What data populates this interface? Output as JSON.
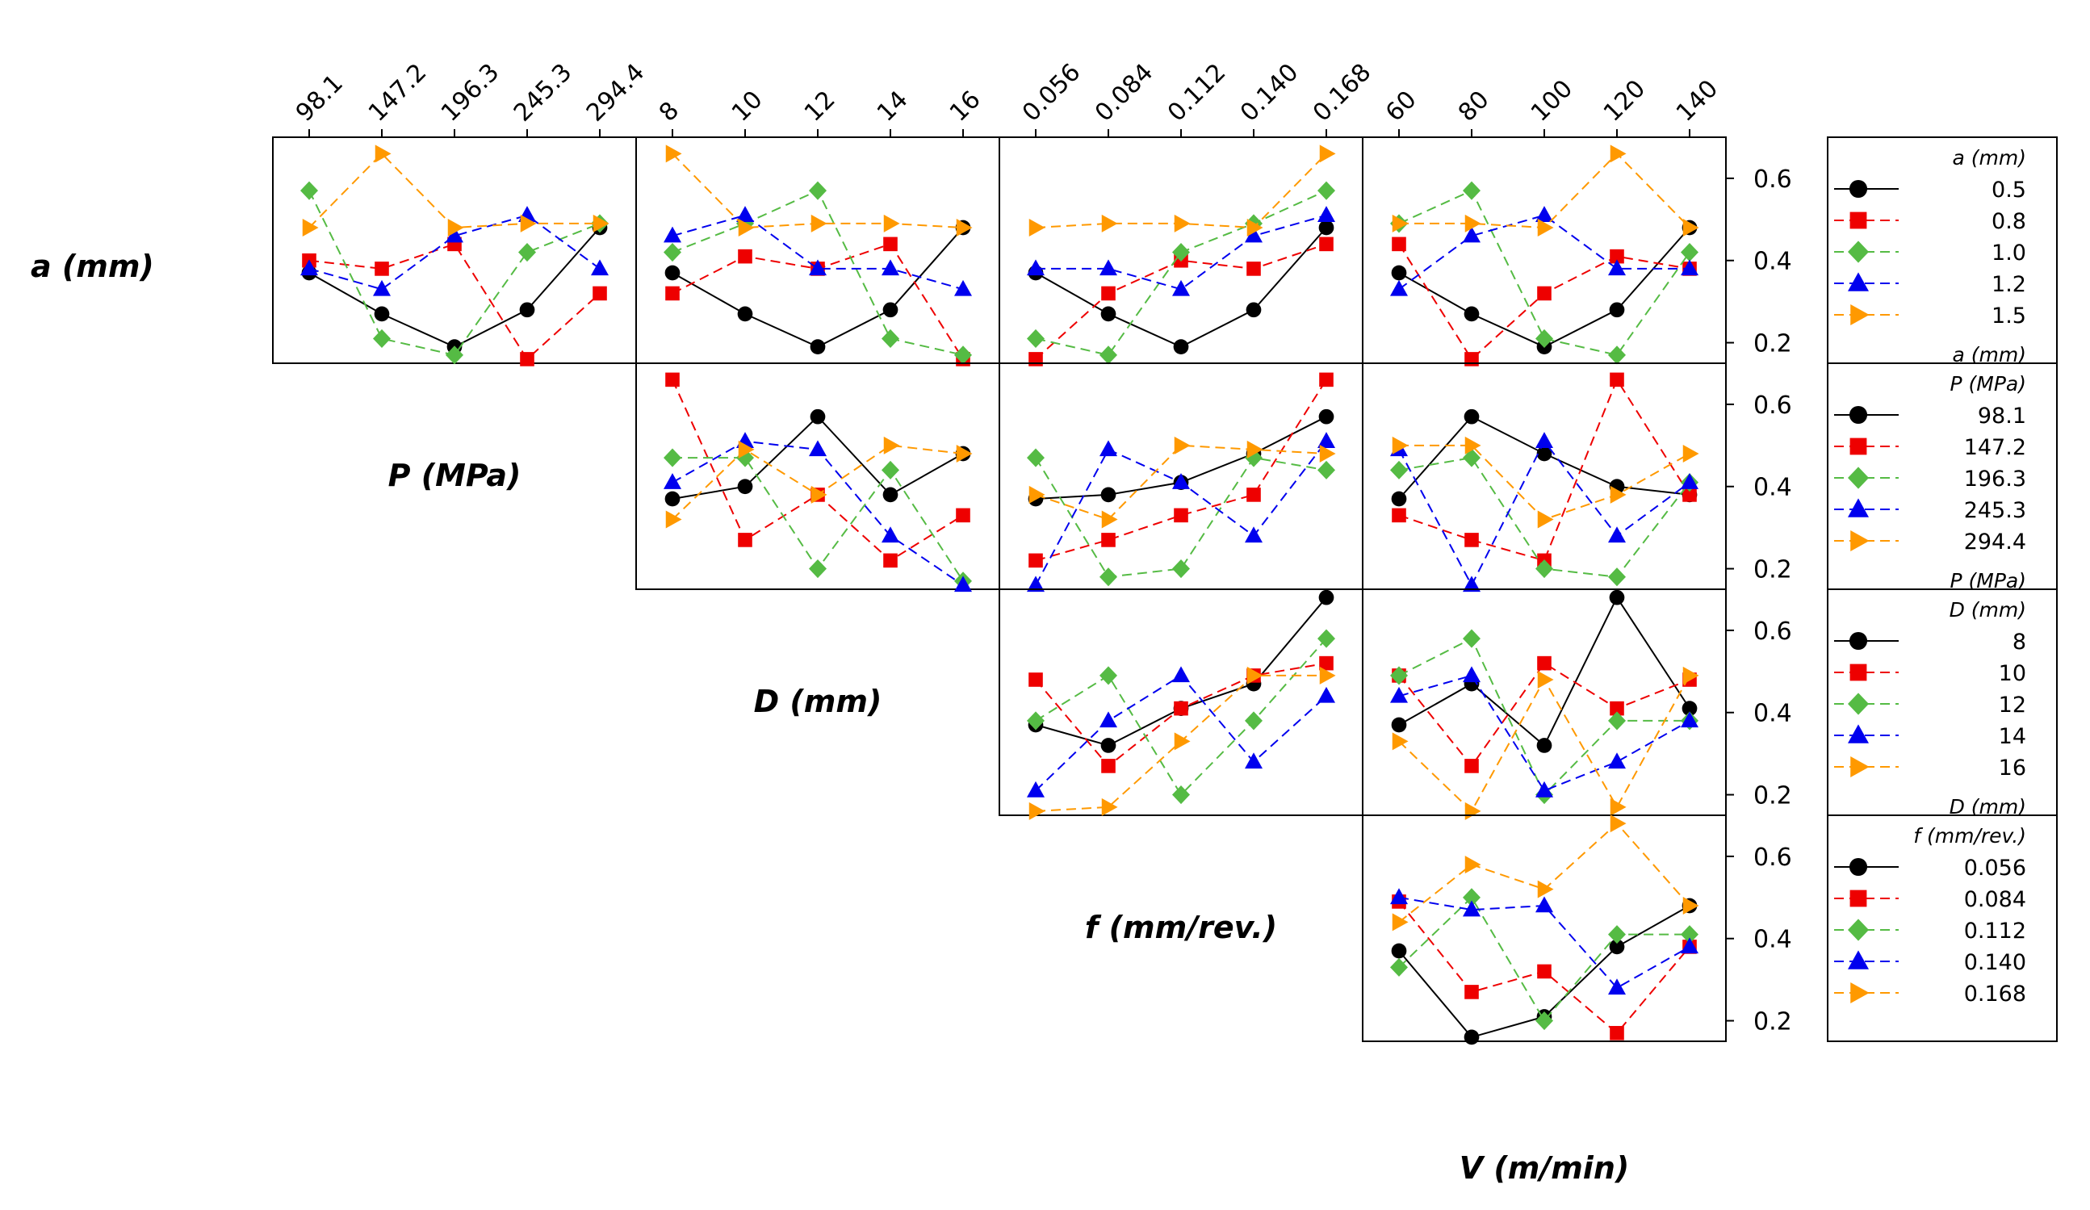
{
  "chart_data": {
    "type": "line",
    "title": "",
    "y_ticks": [
      "0.2",
      "0.4",
      "0.6"
    ],
    "ylim": [
      0.15,
      0.7
    ],
    "grid": false,
    "legend_placement": "right",
    "factors": [
      {
        "key": "a",
        "label": "a (mm)",
        "levels": [
          "0.5",
          "0.8",
          "1.0",
          "1.2",
          "1.5"
        ]
      },
      {
        "key": "P",
        "label": "P (MPa)",
        "levels": [
          "98.1",
          "147.2",
          "196.3",
          "245.3",
          "294.4"
        ]
      },
      {
        "key": "D",
        "label": "D (mm)",
        "levels": [
          "8",
          "10",
          "12",
          "14",
          "16"
        ]
      },
      {
        "key": "f",
        "label": "f (mm/rev.)",
        "levels": [
          "0.056",
          "0.084",
          "0.112",
          "0.140",
          "0.168"
        ]
      },
      {
        "key": "V",
        "label": "V (m/min)",
        "levels": [
          "60",
          "80",
          "100",
          "120",
          "140"
        ]
      }
    ],
    "series_styles": [
      {
        "color": "#000000",
        "marker": "circle",
        "dash": "solid"
      },
      {
        "color": "#ee0000",
        "marker": "square",
        "dash": "dashed"
      },
      {
        "color": "#55bb44",
        "marker": "diamond",
        "dash": "dashed"
      },
      {
        "color": "#0000ee",
        "marker": "triangle-up",
        "dash": "dashed"
      },
      {
        "color": "#ff9900",
        "marker": "triangle-right",
        "dash": "dashed"
      }
    ],
    "rows": [
      {
        "legend_title": "a (mm)",
        "legend_footer": "a (mm)",
        "legend_entries": [
          "0.5",
          "0.8",
          "1.0",
          "1.2",
          "1.5"
        ],
        "panels": [
          {
            "x_factor": "P",
            "series": [
              [
                0.37,
                0.27,
                0.19,
                0.28,
                0.48
              ],
              [
                0.4,
                0.38,
                0.44,
                0.16,
                0.32
              ],
              [
                0.57,
                0.21,
                0.17,
                0.42,
                0.49
              ],
              [
                0.38,
                0.33,
                0.46,
                0.51,
                0.38
              ],
              [
                0.48,
                0.66,
                0.48,
                0.49,
                0.49
              ]
            ]
          },
          {
            "x_factor": "D",
            "series": [
              [
                0.37,
                0.27,
                0.19,
                0.28,
                0.48
              ],
              [
                0.32,
                0.41,
                0.38,
                0.44,
                0.16
              ],
              [
                0.42,
                0.49,
                0.57,
                0.21,
                0.17
              ],
              [
                0.46,
                0.51,
                0.38,
                0.38,
                0.33
              ],
              [
                0.66,
                0.48,
                0.49,
                0.49,
                0.48
              ]
            ]
          },
          {
            "x_factor": "f",
            "series": [
              [
                0.37,
                0.27,
                0.19,
                0.28,
                0.48
              ],
              [
                0.16,
                0.32,
                0.4,
                0.38,
                0.44
              ],
              [
                0.21,
                0.17,
                0.42,
                0.49,
                0.57
              ],
              [
                0.38,
                0.38,
                0.33,
                0.46,
                0.51
              ],
              [
                0.48,
                0.49,
                0.49,
                0.48,
                0.66
              ]
            ]
          },
          {
            "x_factor": "V",
            "series": [
              [
                0.37,
                0.27,
                0.19,
                0.28,
                0.48
              ],
              [
                0.44,
                0.16,
                0.32,
                0.41,
                0.38
              ],
              [
                0.49,
                0.57,
                0.21,
                0.17,
                0.42
              ],
              [
                0.33,
                0.46,
                0.51,
                0.38,
                0.38
              ],
              [
                0.49,
                0.49,
                0.48,
                0.66,
                0.48
              ]
            ]
          }
        ]
      },
      {
        "legend_title": "P (MPa)",
        "legend_footer": "P (MPa)",
        "legend_entries": [
          "98.1",
          "147.2",
          "196.3",
          "245.3",
          "294.4"
        ],
        "panels": [
          {
            "x_factor": "D",
            "series": [
              [
                0.37,
                0.4,
                0.57,
                0.38,
                0.48
              ],
              [
                0.66,
                0.27,
                0.38,
                0.22,
                0.33
              ],
              [
                0.47,
                0.47,
                0.2,
                0.44,
                0.17
              ],
              [
                0.41,
                0.51,
                0.49,
                0.28,
                0.16
              ],
              [
                0.32,
                0.49,
                0.38,
                0.5,
                0.48
              ]
            ]
          },
          {
            "x_factor": "f",
            "series": [
              [
                0.37,
                0.38,
                0.41,
                0.48,
                0.57
              ],
              [
                0.22,
                0.27,
                0.33,
                0.38,
                0.66
              ],
              [
                0.47,
                0.18,
                0.2,
                0.47,
                0.44
              ],
              [
                0.16,
                0.49,
                0.41,
                0.28,
                0.51
              ],
              [
                0.38,
                0.32,
                0.5,
                0.49,
                0.48
              ]
            ]
          },
          {
            "x_factor": "V",
            "series": [
              [
                0.37,
                0.57,
                0.48,
                0.4,
                0.38
              ],
              [
                0.33,
                0.27,
                0.22,
                0.66,
                0.38
              ],
              [
                0.44,
                0.47,
                0.2,
                0.18,
                0.41
              ],
              [
                0.49,
                0.16,
                0.51,
                0.28,
                0.41
              ],
              [
                0.5,
                0.5,
                0.32,
                0.38,
                0.48
              ]
            ]
          }
        ]
      },
      {
        "legend_title": "D (mm)",
        "legend_footer": "D (mm)",
        "legend_entries": [
          "8",
          "10",
          "12",
          "14",
          "16"
        ],
        "panels": [
          {
            "x_factor": "f",
            "series": [
              [
                0.37,
                0.32,
                0.41,
                0.47,
                0.68
              ],
              [
                0.48,
                0.27,
                0.41,
                0.49,
                0.52
              ],
              [
                0.38,
                0.49,
                0.2,
                0.38,
                0.58
              ],
              [
                0.21,
                0.38,
                0.49,
                0.28,
                0.44
              ],
              [
                0.16,
                0.17,
                0.33,
                0.49,
                0.49
              ]
            ]
          },
          {
            "x_factor": "V",
            "series": [
              [
                0.37,
                0.47,
                0.32,
                0.68,
                0.41
              ],
              [
                0.49,
                0.27,
                0.52,
                0.41,
                0.48
              ],
              [
                0.49,
                0.58,
                0.2,
                0.38,
                0.38
              ],
              [
                0.44,
                0.49,
                0.21,
                0.28,
                0.38
              ],
              [
                0.33,
                0.16,
                0.48,
                0.17,
                0.49
              ]
            ]
          }
        ]
      },
      {
        "legend_title": "f (mm/rev.)",
        "legend_footer": "",
        "legend_entries": [
          "0.056",
          "0.084",
          "0.112",
          "0.140",
          "0.168"
        ],
        "panels": [
          {
            "x_factor": "V",
            "series": [
              [
                0.37,
                0.16,
                0.21,
                0.38,
                0.48
              ],
              [
                0.49,
                0.27,
                0.32,
                0.17,
                0.38
              ],
              [
                0.33,
                0.5,
                0.2,
                0.41,
                0.41
              ],
              [
                0.5,
                0.47,
                0.48,
                0.28,
                0.38
              ],
              [
                0.44,
                0.58,
                0.52,
                0.68,
                0.48
              ]
            ]
          }
        ]
      }
    ]
  }
}
